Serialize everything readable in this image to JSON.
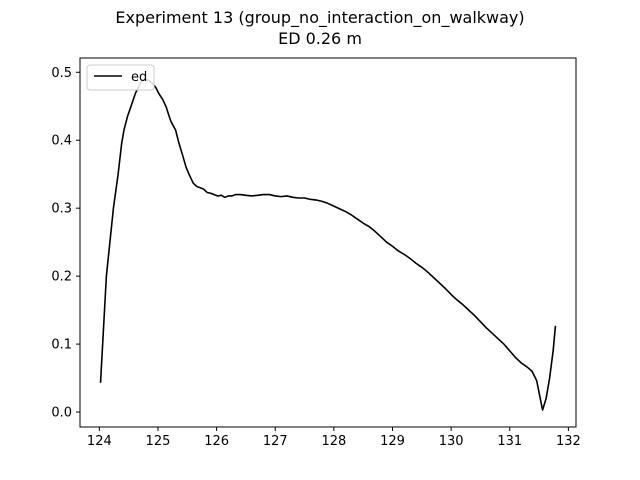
{
  "chart_data": {
    "type": "line",
    "title": "Experiment 13 (group_no_interaction_on_walkway)",
    "subtitle": "ED 0.26 m",
    "xlabel": "",
    "ylabel": "",
    "xlim": [
      123.67,
      132.13
    ],
    "ylim": [
      -0.022,
      0.521
    ],
    "xticks": [
      124,
      125,
      126,
      127,
      128,
      129,
      130,
      131,
      132
    ],
    "yticks": [
      0.0,
      0.1,
      0.2,
      0.3,
      0.4,
      0.5
    ],
    "ytick_labels": [
      "0.0",
      "0.1",
      "0.2",
      "0.3",
      "0.4",
      "0.5"
    ],
    "grid": false,
    "legend": {
      "position": "top-left",
      "entries": [
        "ed"
      ]
    },
    "series": [
      {
        "name": "ed",
        "color": "#000000",
        "x": [
          124.02,
          124.12,
          124.24,
          124.32,
          124.38,
          124.42,
          124.48,
          124.56,
          124.62,
          124.68,
          124.72,
          124.78,
          124.84,
          124.9,
          124.96,
          125.02,
          125.08,
          125.14,
          125.18,
          125.22,
          125.3,
          125.36,
          125.42,
          125.48,
          125.54,
          125.6,
          125.66,
          125.72,
          125.78,
          125.84,
          125.9,
          125.96,
          126.02,
          126.08,
          126.14,
          126.2,
          126.26,
          126.32,
          126.4,
          126.5,
          126.6,
          126.7,
          126.8,
          126.9,
          127.0,
          127.1,
          127.2,
          127.3,
          127.4,
          127.5,
          127.6,
          127.7,
          127.8,
          127.9,
          128.0,
          128.1,
          128.2,
          128.3,
          128.4,
          128.5,
          128.6,
          128.7,
          128.8,
          128.9,
          129.0,
          129.1,
          129.2,
          129.3,
          129.4,
          129.5,
          129.6,
          129.7,
          129.8,
          129.9,
          130.0,
          130.1,
          130.2,
          130.3,
          130.4,
          130.5,
          130.6,
          130.7,
          130.8,
          130.9,
          131.0,
          131.1,
          131.2,
          131.3,
          131.38,
          131.46,
          131.52,
          131.56,
          131.62,
          131.68,
          131.74,
          131.78
        ],
        "y": [
          0.043,
          0.2,
          0.3,
          0.35,
          0.395,
          0.415,
          0.435,
          0.455,
          0.47,
          0.48,
          0.487,
          0.49,
          0.488,
          0.484,
          0.478,
          0.468,
          0.46,
          0.449,
          0.438,
          0.428,
          0.415,
          0.395,
          0.378,
          0.36,
          0.348,
          0.337,
          0.332,
          0.33,
          0.328,
          0.323,
          0.322,
          0.32,
          0.318,
          0.319,
          0.316,
          0.318,
          0.318,
          0.32,
          0.32,
          0.319,
          0.318,
          0.319,
          0.32,
          0.32,
          0.318,
          0.317,
          0.318,
          0.316,
          0.315,
          0.315,
          0.313,
          0.312,
          0.31,
          0.307,
          0.303,
          0.299,
          0.295,
          0.29,
          0.284,
          0.278,
          0.273,
          0.266,
          0.258,
          0.25,
          0.244,
          0.237,
          0.232,
          0.226,
          0.219,
          0.213,
          0.206,
          0.198,
          0.19,
          0.182,
          0.173,
          0.165,
          0.158,
          0.15,
          0.142,
          0.133,
          0.124,
          0.116,
          0.108,
          0.1,
          0.09,
          0.08,
          0.072,
          0.066,
          0.06,
          0.046,
          0.02,
          0.003,
          0.02,
          0.05,
          0.09,
          0.127
        ]
      }
    ]
  }
}
